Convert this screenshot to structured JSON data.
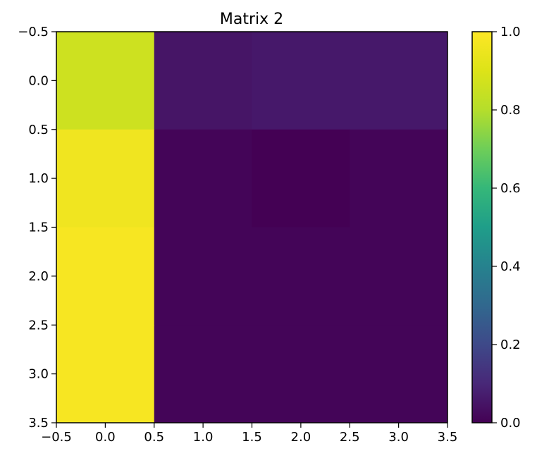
{
  "chart_data": {
    "type": "heatmap",
    "title": "Matrix 2",
    "xlabel": "",
    "ylabel": "",
    "colormap": "viridis",
    "xlim": [
      -0.5,
      3.5
    ],
    "ylim": [
      3.5,
      -0.5
    ],
    "x_ticks": [
      "−0.5",
      "0.0",
      "0.5",
      "1.0",
      "1.5",
      "2.0",
      "2.5",
      "3.0",
      "3.5"
    ],
    "y_ticks": [
      "−0.5",
      "0.0",
      "0.5",
      "1.0",
      "1.5",
      "2.0",
      "2.5",
      "3.0",
      "3.5"
    ],
    "colorbar": {
      "range": [
        0.0,
        1.0
      ],
      "ticks": [
        "0.0",
        "0.2",
        "0.4",
        "0.6",
        "0.8",
        "1.0"
      ]
    },
    "values": [
      [
        0.86,
        0.05,
        0.06,
        0.06
      ],
      [
        0.96,
        0.01,
        0.0,
        0.01
      ],
      [
        0.98,
        0.01,
        0.01,
        0.01
      ],
      [
        0.98,
        0.01,
        0.01,
        0.01
      ]
    ]
  }
}
